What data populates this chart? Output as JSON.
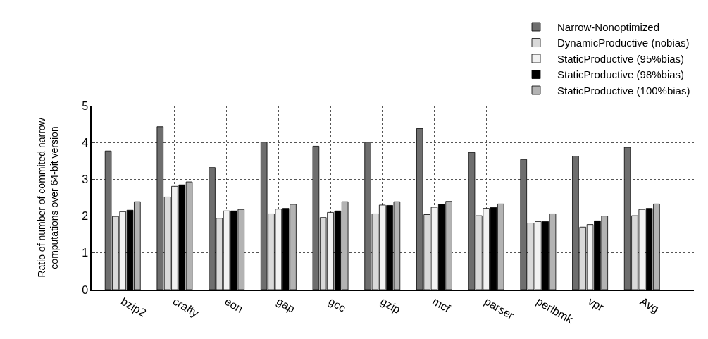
{
  "chart_data": {
    "type": "bar",
    "ylabel": "Ratio of number of commited narrow\ncomputations over 64-bit version",
    "categories": [
      "bzip2",
      "crafty",
      "eon",
      "gap",
      "gcc",
      "gzip",
      "mcf",
      "parser",
      "perlbmk",
      "vpr",
      "Avg"
    ],
    "series": [
      {
        "name": "Narrow-Nonoptimized",
        "color": "#6e6e6e",
        "values": [
          3.77,
          4.43,
          3.32,
          4.01,
          3.9,
          4.01,
          4.38,
          3.73,
          3.54,
          3.63,
          3.87
        ]
      },
      {
        "name": "DynamicProductive (nobias)",
        "color": "#d9d9d9",
        "values": [
          1.99,
          2.52,
          1.94,
          2.06,
          1.96,
          2.06,
          2.04,
          2.01,
          1.81,
          1.7,
          2.01
        ]
      },
      {
        "name": "StaticProductive (95%bias)",
        "color": "#f2f2f2",
        "values": [
          2.12,
          2.81,
          2.14,
          2.19,
          2.1,
          2.3,
          2.24,
          2.21,
          1.85,
          1.77,
          2.18
        ]
      },
      {
        "name": "StaticProductive (98%bias)",
        "color": "#000000",
        "values": [
          2.16,
          2.85,
          2.14,
          2.21,
          2.14,
          2.29,
          2.32,
          2.23,
          1.85,
          1.87,
          2.21
        ]
      },
      {
        "name": "StaticProductive (100%bias)",
        "color": "#b3b3b3",
        "values": [
          2.39,
          2.93,
          2.18,
          2.32,
          2.39,
          2.39,
          2.4,
          2.33,
          2.06,
          2.0,
          2.33
        ]
      }
    ],
    "ylim": [
      0,
      5
    ],
    "yticks": [
      0,
      1,
      2,
      3,
      4,
      5
    ],
    "grid": true,
    "legend": "top right"
  }
}
